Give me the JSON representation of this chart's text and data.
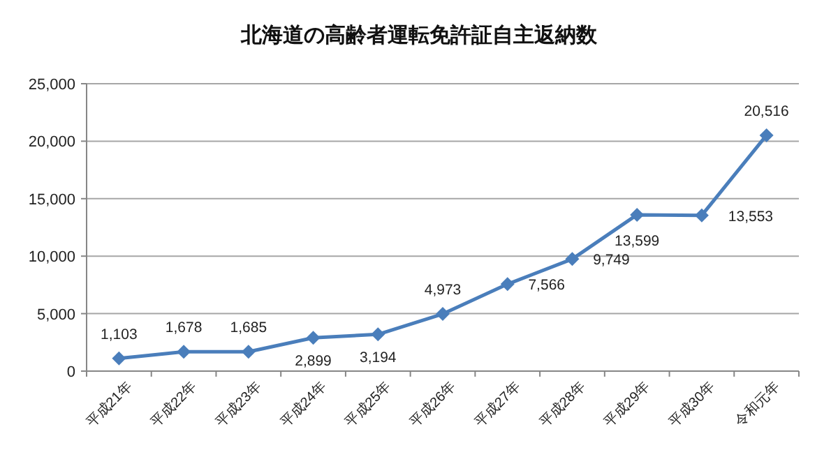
{
  "chart_data": {
    "type": "line",
    "title": "北海道の高齢者運転免許証自主返納数",
    "categories": [
      "平成21年",
      "平成22年",
      "平成23年",
      "平成24年",
      "平成25年",
      "平成26年",
      "平成27年",
      "平成28年",
      "平成29年",
      "平成30年",
      "令和元年"
    ],
    "series": [
      {
        "color": "#4a7ebb",
        "values": [
          1103,
          1678,
          1685,
          2899,
          3194,
          4973,
          7566,
          9749,
          13599,
          13553,
          20516
        ],
        "value_labels": [
          "1,103",
          "1,678",
          "1,685",
          "2,899",
          "3,194",
          "4,973",
          "7,566",
          "9,749",
          "13,599",
          "13,553",
          "20,516"
        ]
      }
    ],
    "ylim": [
      0,
      25000
    ],
    "yticks": [
      {
        "value": 0,
        "label": "0"
      },
      {
        "value": 5000,
        "label": "5,000"
      },
      {
        "value": 10000,
        "label": "10,000"
      },
      {
        "value": 15000,
        "label": "15,000"
      },
      {
        "value": 20000,
        "label": "20,000"
      },
      {
        "value": 25000,
        "label": "25,000"
      }
    ],
    "grid": "y",
    "marker": "diamond",
    "line_style": "solid"
  }
}
